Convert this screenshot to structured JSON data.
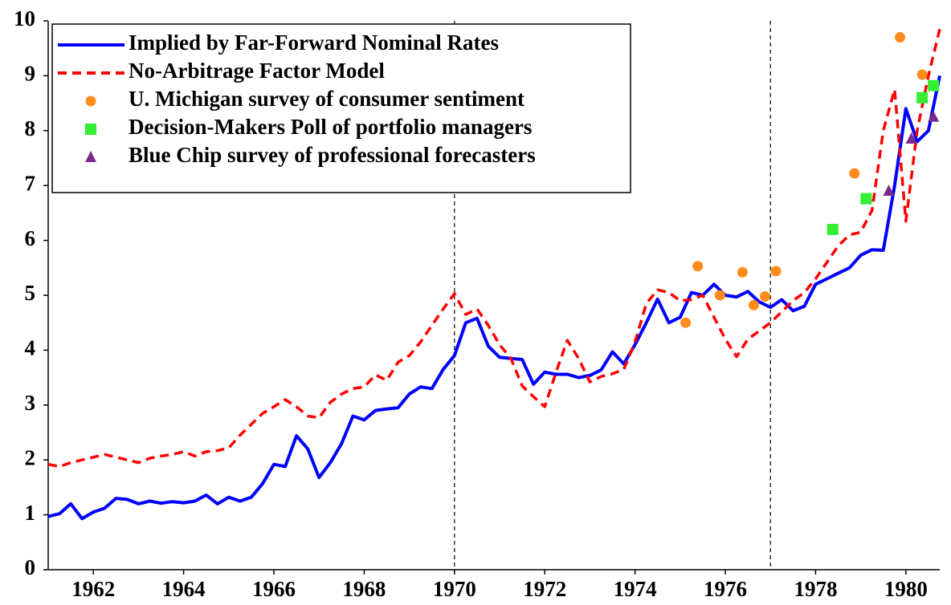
{
  "chart_data": {
    "type": "line",
    "x": [
      1961,
      1961.25,
      1961.5,
      1961.75,
      1962,
      1962.25,
      1962.5,
      1962.75,
      1963,
      1963.25,
      1963.5,
      1963.75,
      1964,
      1964.25,
      1964.5,
      1964.75,
      1965,
      1965.25,
      1965.5,
      1965.75,
      1966,
      1966.25,
      1966.5,
      1966.75,
      1967,
      1967.25,
      1967.5,
      1967.75,
      1968,
      1968.25,
      1968.5,
      1968.75,
      1969,
      1969.25,
      1969.5,
      1969.75,
      1970,
      1970.25,
      1970.5,
      1970.75,
      1971,
      1971.25,
      1971.5,
      1971.75,
      1972,
      1972.25,
      1972.5,
      1972.75,
      1973,
      1973.25,
      1973.5,
      1973.75,
      1974,
      1974.25,
      1974.5,
      1974.75,
      1975,
      1975.25,
      1975.5,
      1975.75,
      1976,
      1976.25,
      1976.5,
      1976.75,
      1977,
      1977.25,
      1977.5,
      1977.75,
      1978,
      1978.25,
      1978.5,
      1978.75,
      1979,
      1979.25,
      1979.5,
      1979.75,
      1980,
      1980.25,
      1980.5,
      1980.75
    ],
    "series": [
      {
        "name": "Implied by Far-Forward Nominal Rates",
        "color": "#0000ff",
        "style": "solid",
        "values": [
          0.97,
          1.02,
          1.2,
          0.93,
          1.05,
          1.12,
          1.3,
          1.28,
          1.2,
          1.25,
          1.21,
          1.24,
          1.22,
          1.25,
          1.36,
          1.2,
          1.32,
          1.25,
          1.32,
          1.57,
          1.92,
          1.88,
          2.44,
          2.2,
          1.68,
          1.95,
          2.3,
          2.8,
          2.73,
          2.9,
          2.93,
          2.95,
          3.2,
          3.33,
          3.3,
          3.65,
          3.9,
          4.5,
          4.58,
          4.07,
          3.87,
          3.85,
          3.83,
          3.38,
          3.6,
          3.56,
          3.56,
          3.5,
          3.54,
          3.64,
          3.97,
          3.75,
          4.1,
          4.5,
          4.93,
          4.5,
          4.6,
          5.05,
          5.0,
          5.2,
          5.0,
          4.97,
          5.07,
          4.88,
          4.78,
          4.92,
          4.72,
          4.8,
          5.2,
          5.3,
          5.4,
          5.5,
          5.73,
          5.83,
          5.82,
          7.0,
          8.4,
          7.8,
          8.0,
          9.0
        ]
      },
      {
        "name": "No-Arbitrage Factor Model",
        "color": "#ff0000",
        "style": "dashed",
        "values": [
          1.92,
          1.88,
          1.95,
          2.0,
          2.05,
          2.1,
          2.05,
          2.0,
          1.95,
          2.03,
          2.07,
          2.1,
          2.15,
          2.07,
          2.15,
          2.17,
          2.22,
          2.45,
          2.65,
          2.85,
          2.97,
          3.1,
          2.97,
          2.8,
          2.77,
          3.05,
          3.2,
          3.3,
          3.33,
          3.55,
          3.45,
          3.78,
          3.9,
          4.15,
          4.45,
          4.75,
          5.03,
          4.65,
          4.75,
          4.45,
          4.1,
          3.85,
          3.35,
          3.15,
          2.97,
          3.6,
          4.18,
          3.85,
          3.42,
          3.52,
          3.57,
          3.65,
          4.15,
          4.85,
          5.1,
          5.05,
          4.9,
          4.92,
          5.0,
          4.6,
          4.2,
          3.88,
          4.2,
          4.35,
          4.5,
          4.7,
          4.9,
          5.05,
          5.3,
          5.6,
          5.9,
          6.1,
          6.15,
          6.55,
          8.0,
          8.75,
          6.35,
          8.0,
          9.0,
          9.85
        ]
      }
    ],
    "points": [
      {
        "name": "U. Michigan survey of consumer sentiment",
        "color": "#ff8c1a",
        "marker": "circle",
        "x": [
          1975.12,
          1975.39,
          1975.88,
          1976.38,
          1976.63,
          1976.88,
          1977.12,
          1978.86,
          1979.87,
          1980.36
        ],
        "values": [
          4.5,
          5.53,
          5.0,
          5.42,
          4.82,
          4.98,
          5.44,
          7.22,
          9.7,
          9.02
        ]
      },
      {
        "name": "Decision-Makers Poll of portfolio managers",
        "color": "#33ee33",
        "marker": "square",
        "x": [
          1978.38,
          1979.12,
          1980.36,
          1980.61
        ],
        "values": [
          6.2,
          6.76,
          8.6,
          8.82
        ]
      },
      {
        "name": "Blue Chip survey of professional forecasters",
        "color": "#7b2a8c",
        "marker": "triangle",
        "x": [
          1979.62,
          1980.12,
          1980.61
        ],
        "values": [
          6.9,
          7.85,
          8.25
        ]
      }
    ],
    "vlines": [
      1970,
      1977
    ],
    "xlim": [
      1961,
      1980.75
    ],
    "xticks": [
      1962,
      1964,
      1966,
      1968,
      1970,
      1972,
      1974,
      1976,
      1978,
      1980
    ],
    "ylim": [
      0,
      10
    ],
    "yticks": [
      0,
      1,
      2,
      3,
      4,
      5,
      6,
      7,
      8,
      9,
      10
    ],
    "legend": "top-left"
  }
}
